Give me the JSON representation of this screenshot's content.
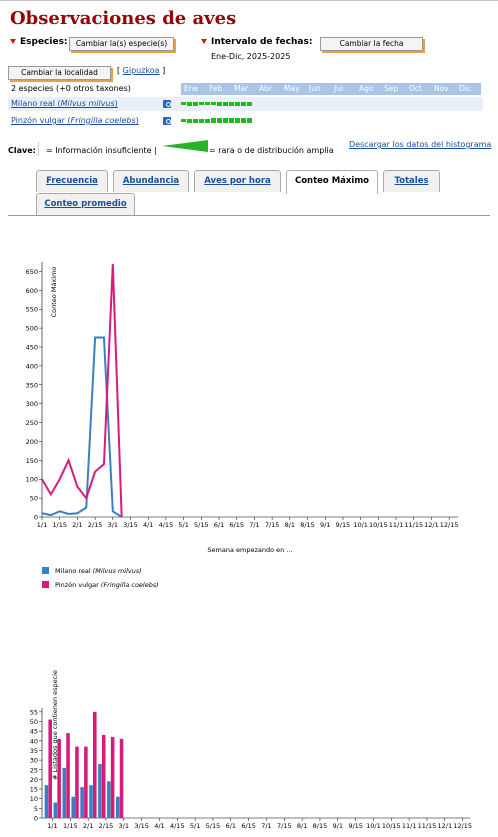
{
  "title": "Observaciones de aves",
  "species_label": "Especies:",
  "change_species": "Cambiar la(s) especie(s)",
  "date_label": "Intervalo de fechas:",
  "change_date": "Cambiar la fecha",
  "date_value": "Ene-Dic, 2025-2025",
  "change_location": "Cambiar la localidad",
  "location_link": "Gipuzkoa",
  "location_open": "[ ",
  "location_close": " ]",
  "species_count": "2 especies (+0 otros taxones)",
  "months": [
    "Ene",
    "Feb",
    "Mar",
    "Abr",
    "May",
    "Jun",
    "Jul",
    "Ago",
    "Sep",
    "Oct",
    "Nov",
    "Dic"
  ],
  "species": [
    {
      "common": "Milano real",
      "sci": "Milvus milvus",
      "hist": [
        3,
        4,
        4,
        3,
        3,
        3,
        4,
        4,
        4,
        4,
        4,
        4
      ]
    },
    {
      "common": "Pinzón vulgar",
      "sci": "Fringilla coelebs",
      "hist": [
        3,
        4,
        4,
        4,
        4,
        5,
        5,
        5,
        5,
        5,
        5,
        5
      ]
    }
  ],
  "key_label": "Clave:",
  "key_insufficient": "= Información insuficiente |",
  "key_rare": "= rara o de distribución amplia",
  "download": "Descargar los datos del histograma",
  "tabs": [
    "Frecuencia",
    "Abundancia",
    "Aves por hora",
    "Conteo Máximo",
    "Totales",
    "Conteo promedio"
  ],
  "active_tab": "Conteo Máximo",
  "colors": {
    "milano": "#3a7fc1",
    "pinzon": "#d81b7a",
    "title": "#990000",
    "hist": "#28b428"
  },
  "chart_data": [
    {
      "type": "line",
      "ylabel": "Conteo Máximo",
      "xlabel": "Semana empezando en ...",
      "ylim": [
        0,
        675
      ],
      "yticks": [
        0,
        50,
        100,
        150,
        200,
        250,
        300,
        350,
        400,
        450,
        500,
        550,
        600,
        650
      ],
      "xticks": [
        "1/1",
        "1/15",
        "2/1",
        "2/15",
        "3/1",
        "3/15",
        "4/1",
        "4/15",
        "5/1",
        "5/15",
        "6/1",
        "6/15",
        "7/1",
        "7/15",
        "8/1",
        "8/15",
        "9/1",
        "9/15",
        "10/1",
        "10/15",
        "11/1",
        "11/15",
        "12/1",
        "12/15"
      ],
      "series": [
        {
          "name": "Milano real",
          "sci": "Milvus milvus",
          "values": [
            10,
            5,
            15,
            8,
            10,
            25,
            475,
            475,
            15,
            0,
            0,
            0,
            0,
            0,
            0,
            0,
            0,
            0,
            0,
            0,
            0,
            0,
            0,
            0,
            0,
            0,
            0,
            0,
            0,
            0,
            0,
            0,
            0,
            0,
            0,
            0,
            0,
            0,
            0,
            0,
            0,
            0,
            0,
            0,
            0,
            0,
            0,
            0
          ]
        },
        {
          "name": "Pinzón vulgar",
          "sci": "Fringilla coelebs",
          "values": [
            100,
            60,
            100,
            150,
            80,
            50,
            120,
            140,
            670,
            0,
            0,
            0,
            0,
            0,
            0,
            0,
            0,
            0,
            0,
            0,
            0,
            0,
            0,
            0,
            0,
            0,
            0,
            0,
            0,
            0,
            0,
            0,
            0,
            0,
            0,
            0,
            0,
            0,
            0,
            0,
            0,
            0,
            0,
            0,
            0,
            0,
            0,
            0
          ]
        }
      ]
    },
    {
      "type": "bar",
      "ylabel": "# Listados que contienen especie",
      "ylim": [
        0,
        57
      ],
      "yticks": [
        0,
        5,
        10,
        15,
        20,
        25,
        30,
        35,
        40,
        45,
        50,
        55
      ],
      "xticks": [
        "1/1",
        "1/15",
        "2/1",
        "2/15",
        "3/1",
        "3/15",
        "4/1",
        "4/15",
        "5/1",
        "5/15",
        "6/1",
        "6/15",
        "7/1",
        "7/15",
        "8/1",
        "8/15",
        "9/1",
        "9/15",
        "10/1",
        "10/15",
        "11/1",
        "11/15",
        "12/1",
        "12/15"
      ],
      "series": [
        {
          "name": "Milano real",
          "values": [
            17,
            8,
            26,
            11,
            16,
            17,
            28,
            19,
            11,
            0,
            0,
            0,
            0,
            0,
            0,
            0,
            0,
            0,
            0,
            0,
            0,
            0,
            0,
            0,
            0,
            0,
            0,
            0,
            0,
            0,
            0,
            0,
            0,
            0,
            0,
            0,
            0,
            0,
            0,
            0,
            0,
            0,
            0,
            0,
            0,
            0,
            0,
            0
          ]
        },
        {
          "name": "Pinzón vulgar",
          "values": [
            51,
            41,
            44,
            37,
            37,
            55,
            43,
            42,
            41,
            0,
            0,
            0,
            0,
            0,
            0,
            0,
            0,
            0,
            0,
            0,
            0,
            0,
            0,
            0,
            0,
            0,
            0,
            0,
            0,
            0,
            0,
            0,
            0,
            0,
            0,
            0,
            0,
            0,
            0,
            0,
            0,
            0,
            0,
            0,
            0,
            0,
            0,
            0
          ]
        }
      ]
    }
  ]
}
